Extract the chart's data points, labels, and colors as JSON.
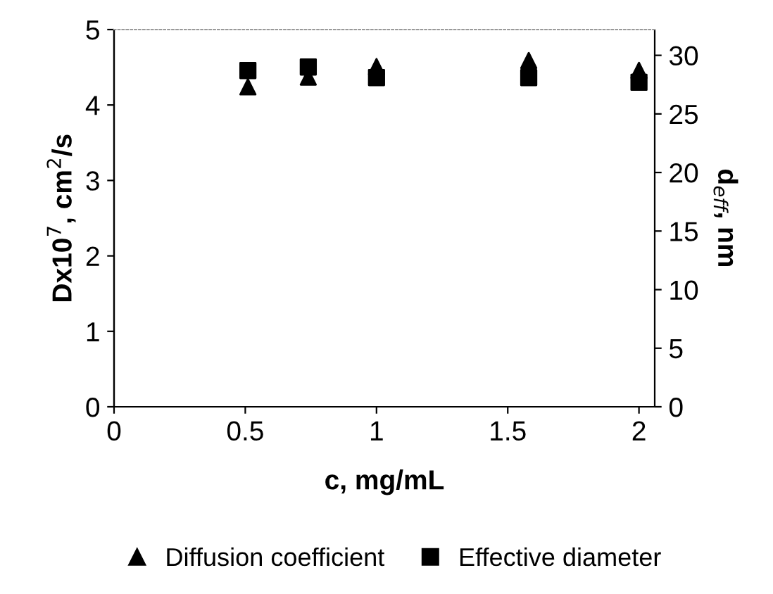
{
  "chart_data": {
    "type": "scatter",
    "xlabel": "c, mg/mL",
    "ylabel": "Dx10$^{7}$, cm$^{2}$/s",
    "y2label": "d$_{eff}$, nm",
    "x": [
      0.51,
      0.74,
      1.0,
      1.58,
      2.0
    ],
    "xlim": [
      0,
      2.06
    ],
    "xticks": [
      0,
      0.5,
      1,
      1.5,
      2
    ],
    "ylim": [
      0,
      5
    ],
    "yticks": [
      0,
      1,
      2,
      3,
      4,
      5
    ],
    "y2lim": [
      0,
      32.2
    ],
    "y2ticks": [
      0,
      5,
      10,
      15,
      20,
      25,
      30
    ],
    "series": [
      {
        "name": "Diffusion coefficient",
        "color": "#000000",
        "marker": "triangle",
        "values": [
          4.24,
          4.37,
          4.51,
          4.59,
          4.46
        ]
      },
      {
        "name": "Effective diameter",
        "color": "#000000",
        "marker": "square",
        "axis": "y2",
        "values": [
          28.7,
          29.0,
          28.1,
          28.1,
          27.7
        ]
      }
    ],
    "legend": "bottom",
    "grid": false
  }
}
